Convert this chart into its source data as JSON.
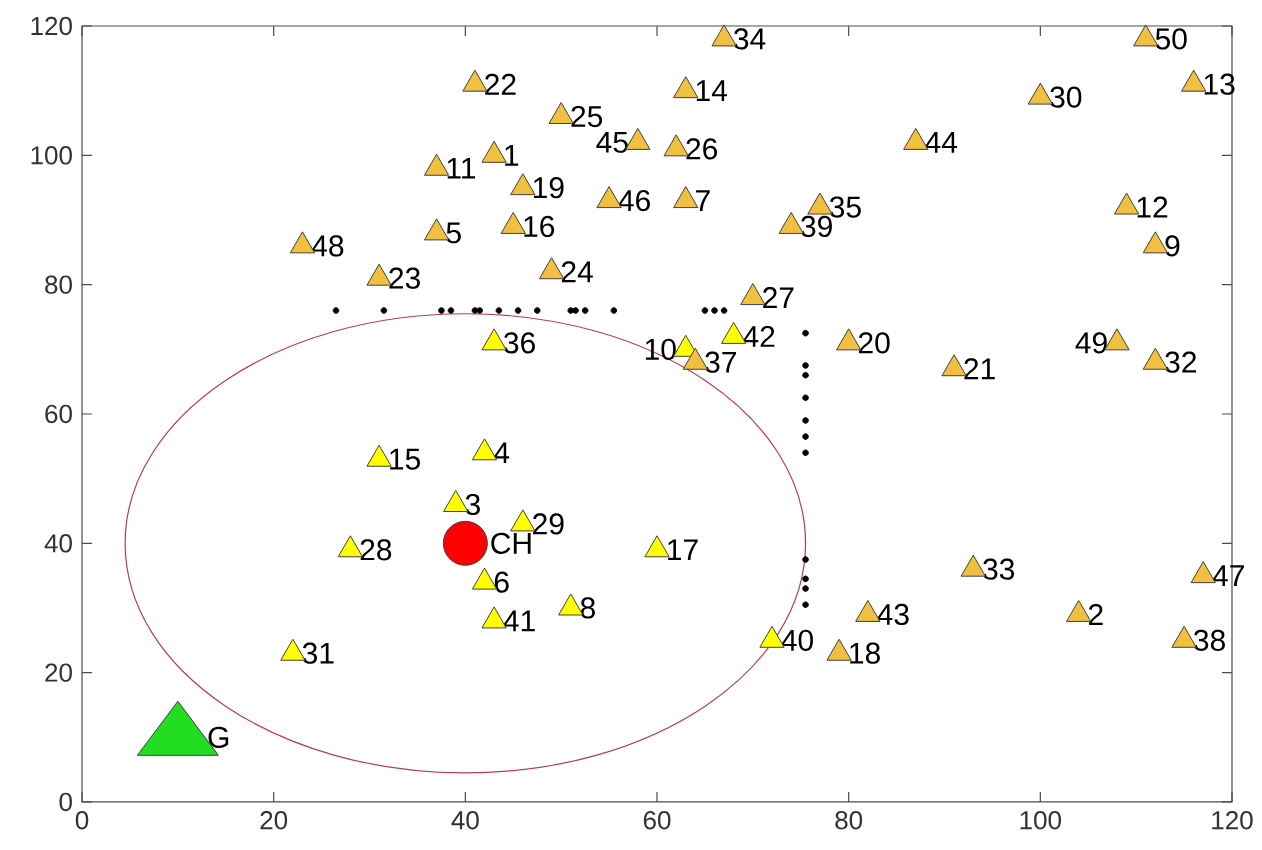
{
  "chart_data": {
    "type": "scatter",
    "xlim": [
      0,
      120
    ],
    "ylim": [
      0,
      120
    ],
    "xticks": [
      0,
      20,
      40,
      60,
      80,
      100,
      120
    ],
    "yticks": [
      0,
      20,
      40,
      60,
      80,
      100,
      120
    ],
    "series": [
      {
        "color": "#000000",
        "marker": "circle",
        "x": [
          26.5,
          31.5,
          37.5,
          38.5,
          41,
          41.5,
          43.5,
          45.5,
          47.5,
          51,
          51.5,
          52.5,
          55.5,
          65,
          66,
          67,
          75.5,
          75.5,
          75.5,
          75.5,
          75.5,
          75.5,
          75.5,
          75.5,
          75.5,
          75.5,
          75.5
        ],
        "values": [
          76,
          76,
          76,
          76,
          76,
          76,
          76,
          76,
          76,
          76,
          76,
          76,
          76,
          76,
          76,
          76,
          72.5,
          67.5,
          66,
          62.5,
          59,
          56.5,
          54,
          37.5,
          34.5,
          33,
          30.5
        ]
      },
      {
        "color": "#ffff00",
        "marker": "triangle",
        "x": [
          39,
          42,
          42,
          51,
          63,
          31,
          60,
          28,
          46,
          22,
          43,
          72,
          43,
          68
        ],
        "values": [
          46,
          54,
          34,
          30,
          70,
          53,
          39,
          39,
          43,
          23,
          71,
          25,
          28,
          72
        ]
      },
      {
        "color": "#f2c040",
        "marker": "triangle",
        "x": [
          43,
          104,
          37,
          63,
          112,
          37,
          109,
          116,
          63,
          45,
          79,
          46,
          80,
          91,
          41,
          31,
          49,
          50,
          62,
          70,
          100,
          112,
          93,
          67,
          77,
          64,
          115,
          74,
          82,
          87,
          58,
          55,
          117,
          23,
          108,
          111
        ],
        "values": [
          100,
          29,
          88,
          93,
          86,
          98,
          92,
          111,
          110,
          89,
          23,
          95,
          71,
          67,
          111,
          81,
          82,
          106,
          101,
          78,
          109,
          68,
          36,
          118,
          92,
          68,
          25,
          89,
          29,
          102,
          102,
          93,
          35,
          86,
          71,
          118
        ]
      },
      {
        "color": "#ff0000",
        "marker": "circle",
        "x": [
          40
        ],
        "values": [
          40
        ]
      },
      {
        "color": "#22dd22",
        "marker": "triangle",
        "x": [
          10
        ],
        "values": [
          10
        ]
      }
    ],
    "annotations": [
      {
        "text": "1",
        "x": 43,
        "y": 100
      },
      {
        "text": "2",
        "x": 104,
        "y": 29
      },
      {
        "text": "3",
        "x": 39,
        "y": 46
      },
      {
        "text": "4",
        "x": 42,
        "y": 54
      },
      {
        "text": "5",
        "x": 37,
        "y": 88
      },
      {
        "text": "6",
        "x": 42,
        "y": 34
      },
      {
        "text": "7",
        "x": 63,
        "y": 93
      },
      {
        "text": "8",
        "x": 51,
        "y": 30
      },
      {
        "text": "9",
        "x": 112,
        "y": 86
      },
      {
        "text": "10",
        "x": 63,
        "y": 70
      },
      {
        "text": "11",
        "x": 37,
        "y": 98
      },
      {
        "text": "12",
        "x": 109,
        "y": 92
      },
      {
        "text": "13",
        "x": 116,
        "y": 111
      },
      {
        "text": "14",
        "x": 63,
        "y": 110
      },
      {
        "text": "15",
        "x": 31,
        "y": 53
      },
      {
        "text": "16",
        "x": 45,
        "y": 89
      },
      {
        "text": "17",
        "x": 60,
        "y": 39
      },
      {
        "text": "18",
        "x": 79,
        "y": 23
      },
      {
        "text": "19",
        "x": 46,
        "y": 95
      },
      {
        "text": "20",
        "x": 80,
        "y": 71
      },
      {
        "text": "21",
        "x": 91,
        "y": 67
      },
      {
        "text": "22",
        "x": 41,
        "y": 111
      },
      {
        "text": "23",
        "x": 31,
        "y": 81
      },
      {
        "text": "24",
        "x": 49,
        "y": 82
      },
      {
        "text": "25",
        "x": 50,
        "y": 106
      },
      {
        "text": "26",
        "x": 62,
        "y": 101
      },
      {
        "text": "27",
        "x": 70,
        "y": 78
      },
      {
        "text": "28",
        "x": 28,
        "y": 39
      },
      {
        "text": "29",
        "x": 46,
        "y": 43
      },
      {
        "text": "30",
        "x": 100,
        "y": 109
      },
      {
        "text": "31",
        "x": 22,
        "y": 23
      },
      {
        "text": "32",
        "x": 112,
        "y": 68
      },
      {
        "text": "33",
        "x": 93,
        "y": 36
      },
      {
        "text": "34",
        "x": 67,
        "y": 118
      },
      {
        "text": "35",
        "x": 77,
        "y": 92
      },
      {
        "text": "36",
        "x": 43,
        "y": 71
      },
      {
        "text": "37",
        "x": 64,
        "y": 68
      },
      {
        "text": "38",
        "x": 115,
        "y": 25
      },
      {
        "text": "39",
        "x": 74,
        "y": 89
      },
      {
        "text": "40",
        "x": 72,
        "y": 25
      },
      {
        "text": "41",
        "x": 43,
        "y": 28
      },
      {
        "text": "42",
        "x": 68,
        "y": 72
      },
      {
        "text": "43",
        "x": 82,
        "y": 29
      },
      {
        "text": "44",
        "x": 87,
        "y": 102
      },
      {
        "text": "45",
        "x": 58,
        "y": 102
      },
      {
        "text": "46",
        "x": 55,
        "y": 93
      },
      {
        "text": "47",
        "x": 117,
        "y": 35
      },
      {
        "text": "48",
        "x": 23,
        "y": 86
      },
      {
        "text": "49",
        "x": 108,
        "y": 71
      },
      {
        "text": "50",
        "x": 111,
        "y": 118
      },
      {
        "text": "CH",
        "x": 40,
        "y": 40
      },
      {
        "text": "G",
        "x": 10,
        "y": 10
      }
    ]
  }
}
